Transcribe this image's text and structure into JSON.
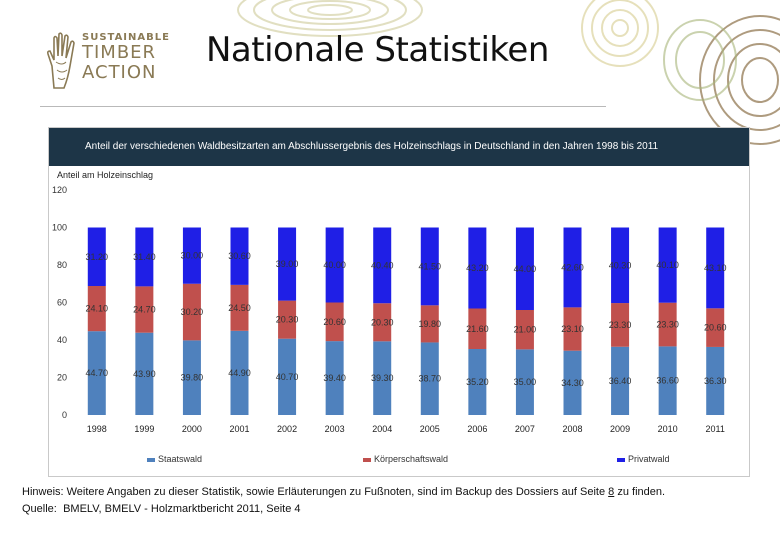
{
  "page": {
    "title": "Nationale Statistiken",
    "logo": {
      "line1": "SUSTAINABLE",
      "line2": "TIMBER",
      "line3": "ACTION"
    },
    "footnote_prefix": "Hinweis: Weitere Angaben zu dieser Statistik, sowie Erläuterungen zu Fußnoten, sind im Backup des Dossiers auf Seite ",
    "footnote_link": "8",
    "footnote_suffix": " zu finden.",
    "source_label": "Quelle:",
    "source_text": "BMELV, BMELV - Holzmarktbericht 2011, Seite 4"
  },
  "colors": {
    "staatswald": "#4f81bd",
    "koerperschaftswald": "#c0504d",
    "privatwald": "#1f1fe6",
    "titlebar": "#1d3547"
  },
  "chart_data": {
    "type": "bar",
    "stacked": true,
    "title": "Anteil der verschiedenen Waldbesitzarten am Abschlussergebnis des Holzeinschlags in Deutschland in den Jahren 1998 bis 2011",
    "xlabel": "",
    "ylabel": "Anteil am Holzeinschlag",
    "ylim": [
      0,
      120
    ],
    "yticks": [
      0,
      20,
      40,
      60,
      80,
      100,
      120
    ],
    "grid": false,
    "legend_position": "bottom",
    "categories": [
      "1998",
      "1999",
      "2000",
      "2001",
      "2002",
      "2003",
      "2004",
      "2005",
      "2006",
      "2007",
      "2008",
      "2009",
      "2010",
      "2011"
    ],
    "series": [
      {
        "name": "Staatswald",
        "values": [
          44.7,
          43.9,
          39.8,
          44.9,
          40.7,
          39.4,
          39.3,
          38.7,
          35.2,
          35.0,
          34.3,
          36.4,
          36.6,
          36.3
        ],
        "labels": [
          "44.70",
          "43.90",
          "39.80",
          "44.90",
          "40.70",
          "39.40",
          "39.30",
          "38.70",
          "35.20",
          "35.00",
          "34.30",
          "36.40",
          "36.60",
          "36.30"
        ]
      },
      {
        "name": "Körperschaftswald",
        "values": [
          24.1,
          24.7,
          30.2,
          24.5,
          20.3,
          20.6,
          20.3,
          19.8,
          21.6,
          21.0,
          23.1,
          23.3,
          23.3,
          20.6
        ],
        "labels": [
          "24.10",
          "24.70",
          "30.20",
          "24.50",
          "20.30",
          "20.60",
          "20.30",
          "19.80",
          "21.60",
          "21.00",
          "23.10",
          "23.30",
          "23.30",
          "20.60"
        ]
      },
      {
        "name": "Privatwald",
        "values": [
          31.2,
          31.4,
          30.0,
          30.6,
          39.0,
          40.0,
          40.4,
          41.5,
          43.2,
          44.0,
          42.6,
          40.3,
          40.1,
          43.1
        ],
        "labels": [
          "31.20",
          "31.40",
          "30.00",
          "30.60",
          "39.00",
          "40.00",
          "40.40",
          "41.50",
          "43.20",
          "44.00",
          "42.60",
          "40.30",
          "40.10",
          "43.10"
        ]
      }
    ]
  }
}
